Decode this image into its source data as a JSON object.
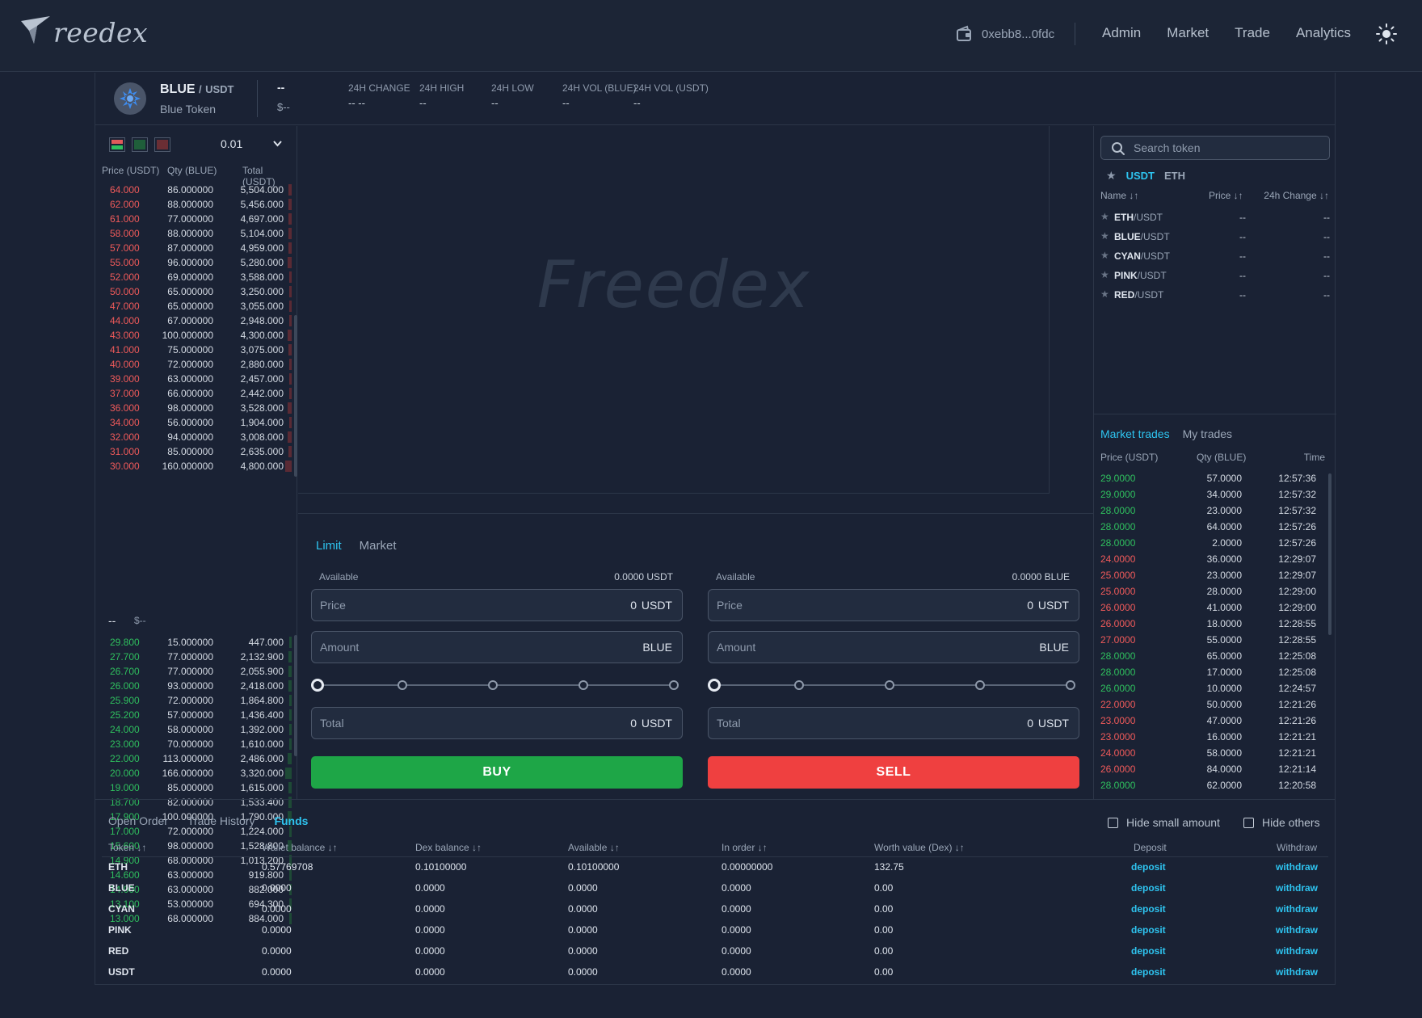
{
  "header": {
    "logo_text": "reedex",
    "wallet_address": "0xebb8...0fdc",
    "nav": [
      "Admin",
      "Market",
      "Trade",
      "Analytics"
    ]
  },
  "pair": {
    "base": "BLUE",
    "separator": "/",
    "quote": "USDT",
    "name": "Blue Token",
    "last_price": "--",
    "last_price_usd": "$--",
    "stats": [
      {
        "label": "24H CHANGE",
        "value": "-- --"
      },
      {
        "label": "24H HIGH",
        "value": "--"
      },
      {
        "label": "24H LOW",
        "value": "--"
      },
      {
        "label": "24H VOL (BLUE)",
        "value": "--"
      },
      {
        "label": "24H VOL (USDT)",
        "value": "--"
      }
    ]
  },
  "orderbook": {
    "step": "0.01",
    "headers": [
      "Price (USDT)",
      "Qty (BLUE)",
      "Total (USDT)"
    ],
    "asks": [
      [
        "64.000",
        "86.000000",
        "5,504.000"
      ],
      [
        "62.000",
        "88.000000",
        "5,456.000"
      ],
      [
        "61.000",
        "77.000000",
        "4,697.000"
      ],
      [
        "58.000",
        "88.000000",
        "5,104.000"
      ],
      [
        "57.000",
        "87.000000",
        "4,959.000"
      ],
      [
        "55.000",
        "96.000000",
        "5,280.000"
      ],
      [
        "52.000",
        "69.000000",
        "3,588.000"
      ],
      [
        "50.000",
        "65.000000",
        "3,250.000"
      ],
      [
        "47.000",
        "65.000000",
        "3,055.000"
      ],
      [
        "44.000",
        "67.000000",
        "2,948.000"
      ],
      [
        "43.000",
        "100.000000",
        "4,300.000"
      ],
      [
        "41.000",
        "75.000000",
        "3,075.000"
      ],
      [
        "40.000",
        "72.000000",
        "2,880.000"
      ],
      [
        "39.000",
        "63.000000",
        "2,457.000"
      ],
      [
        "37.000",
        "66.000000",
        "2,442.000"
      ],
      [
        "36.000",
        "98.000000",
        "3,528.000"
      ],
      [
        "34.000",
        "56.000000",
        "1,904.000"
      ],
      [
        "32.000",
        "94.000000",
        "3,008.000"
      ],
      [
        "31.000",
        "85.000000",
        "2,635.000"
      ],
      [
        "30.000",
        "160.000000",
        "4,800.000"
      ]
    ],
    "mid_price": "--",
    "mid_usd": "$--",
    "bids": [
      [
        "29.800",
        "15.000000",
        "447.000"
      ],
      [
        "27.700",
        "77.000000",
        "2,132.900"
      ],
      [
        "26.700",
        "77.000000",
        "2,055.900"
      ],
      [
        "26.000",
        "93.000000",
        "2,418.000"
      ],
      [
        "25.900",
        "72.000000",
        "1,864.800"
      ],
      [
        "25.200",
        "57.000000",
        "1,436.400"
      ],
      [
        "24.000",
        "58.000000",
        "1,392.000"
      ],
      [
        "23.000",
        "70.000000",
        "1,610.000"
      ],
      [
        "22.000",
        "113.000000",
        "2,486.000"
      ],
      [
        "20.000",
        "166.000000",
        "3,320.000"
      ],
      [
        "19.000",
        "85.000000",
        "1,615.000"
      ],
      [
        "18.700",
        "82.000000",
        "1,533.400"
      ],
      [
        "17.900",
        "100.000000",
        "1,790.000"
      ],
      [
        "17.000",
        "72.000000",
        "1,224.000"
      ],
      [
        "15.600",
        "98.000000",
        "1,528.800"
      ],
      [
        "14.900",
        "68.000000",
        "1,013.200"
      ],
      [
        "14.600",
        "63.000000",
        "919.800"
      ],
      [
        "14.000",
        "63.000000",
        "882.000"
      ],
      [
        "13.100",
        "53.000000",
        "694.300"
      ],
      [
        "13.000",
        "68.000000",
        "884.000"
      ]
    ]
  },
  "chart": {
    "watermark": "Freedex"
  },
  "trade": {
    "tabs": [
      "Limit",
      "Market"
    ],
    "buy": {
      "available_label": "Available",
      "available_value": "0.0000 USDT",
      "price_label": "Price",
      "price_value": "0",
      "price_unit": "USDT",
      "amount_label": "Amount",
      "amount_unit": "BLUE",
      "total_label": "Total",
      "total_value": "0",
      "total_unit": "USDT",
      "button": "BUY"
    },
    "sell": {
      "available_label": "Available",
      "available_value": "0.0000 BLUE",
      "price_label": "Price",
      "price_value": "0",
      "price_unit": "USDT",
      "amount_label": "Amount",
      "amount_unit": "BLUE",
      "total_label": "Total",
      "total_value": "0",
      "total_unit": "USDT",
      "button": "SELL"
    }
  },
  "markets": {
    "search_placeholder": "Search token",
    "quote_tabs": [
      "USDT",
      "ETH"
    ],
    "headers": [
      "Name ↓↑",
      "Price ↓↑",
      "24h Change ↓↑"
    ],
    "rows": [
      {
        "base": "ETH",
        "quote": "/USDT",
        "price": "--",
        "change": "--"
      },
      {
        "base": "BLUE",
        "quote": "/USDT",
        "price": "--",
        "change": "--"
      },
      {
        "base": "CYAN",
        "quote": "/USDT",
        "price": "--",
        "change": "--"
      },
      {
        "base": "PINK",
        "quote": "/USDT",
        "price": "--",
        "change": "--"
      },
      {
        "base": "RED",
        "quote": "/USDT",
        "price": "--",
        "change": "--"
      }
    ]
  },
  "trades": {
    "tabs": [
      "Market trades",
      "My trades"
    ],
    "headers": [
      "Price (USDT)",
      "Qty (BLUE)",
      "Time"
    ],
    "rows": [
      [
        "29.0000",
        "57.0000",
        "12:57:36",
        "up"
      ],
      [
        "29.0000",
        "34.0000",
        "12:57:32",
        "up"
      ],
      [
        "28.0000",
        "23.0000",
        "12:57:32",
        "up"
      ],
      [
        "28.0000",
        "64.0000",
        "12:57:26",
        "up"
      ],
      [
        "28.0000",
        "2.0000",
        "12:57:26",
        "up"
      ],
      [
        "24.0000",
        "36.0000",
        "12:29:07",
        "down"
      ],
      [
        "25.0000",
        "23.0000",
        "12:29:07",
        "down"
      ],
      [
        "25.0000",
        "28.0000",
        "12:29:00",
        "down"
      ],
      [
        "26.0000",
        "41.0000",
        "12:29:00",
        "down"
      ],
      [
        "26.0000",
        "18.0000",
        "12:28:55",
        "down"
      ],
      [
        "27.0000",
        "55.0000",
        "12:28:55",
        "down"
      ],
      [
        "28.0000",
        "65.0000",
        "12:25:08",
        "up"
      ],
      [
        "28.0000",
        "17.0000",
        "12:25:08",
        "up"
      ],
      [
        "26.0000",
        "10.0000",
        "12:24:57",
        "up"
      ],
      [
        "22.0000",
        "50.0000",
        "12:21:26",
        "down"
      ],
      [
        "23.0000",
        "47.0000",
        "12:21:26",
        "down"
      ],
      [
        "23.0000",
        "16.0000",
        "12:21:21",
        "down"
      ],
      [
        "24.0000",
        "58.0000",
        "12:21:21",
        "down"
      ],
      [
        "26.0000",
        "84.0000",
        "12:21:14",
        "down"
      ],
      [
        "28.0000",
        "62.0000",
        "12:20:58",
        "up"
      ]
    ]
  },
  "funds": {
    "tabs": [
      "Open Order",
      "Trade History",
      "Funds"
    ],
    "hide_small": "Hide small amount",
    "hide_others": "Hide others",
    "headers": [
      "Token ↓↑",
      "Wallet balance ↓↑",
      "Dex balance ↓↑",
      "Available ↓↑",
      "In order ↓↑",
      "Worth value (Dex) ↓↑",
      "Deposit",
      "Withdraw"
    ],
    "rows": [
      [
        "ETH",
        "0.57769708",
        "0.10100000",
        "0.10100000",
        "0.00000000",
        "132.75"
      ],
      [
        "BLUE",
        "0.0000",
        "0.0000",
        "0.0000",
        "0.0000",
        "0.00"
      ],
      [
        "CYAN",
        "0.0000",
        "0.0000",
        "0.0000",
        "0.0000",
        "0.00"
      ],
      [
        "PINK",
        "0.0000",
        "0.0000",
        "0.0000",
        "0.0000",
        "0.00"
      ],
      [
        "RED",
        "0.0000",
        "0.0000",
        "0.0000",
        "0.0000",
        "0.00"
      ],
      [
        "USDT",
        "0.0000",
        "0.0000",
        "0.0000",
        "0.0000",
        "0.00"
      ]
    ],
    "deposit_label": "deposit",
    "withdraw_label": "withdraw"
  },
  "colors": {
    "accent": "#2ec4f0",
    "buy": "#1ea647",
    "sell": "#ef4040",
    "ask_text": "#f05a5a",
    "bid_text": "#2fbf5e",
    "background": "#1a2234"
  }
}
